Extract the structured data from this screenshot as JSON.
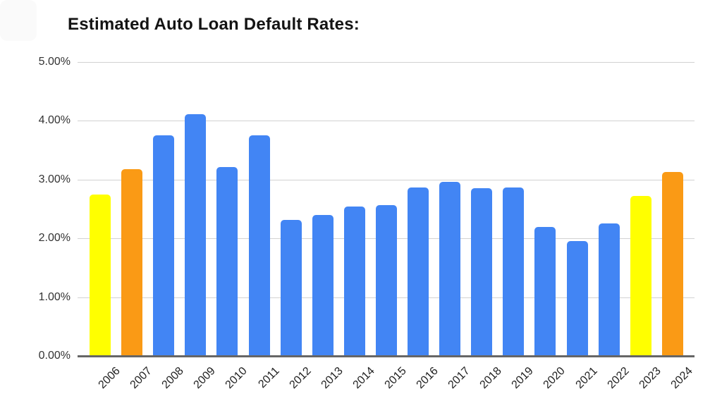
{
  "chart_data": {
    "type": "bar",
    "title": "Estimated Auto Loan Default Rates:",
    "categories": [
      "2006",
      "2007",
      "2008",
      "2009",
      "2010",
      "2011",
      "2012",
      "2013",
      "2014",
      "2015",
      "2016",
      "2017",
      "2018",
      "2019",
      "2020",
      "2021",
      "2022",
      "2023",
      "2024"
    ],
    "values": [
      2.75,
      3.18,
      3.75,
      4.11,
      3.21,
      3.75,
      2.32,
      2.4,
      2.54,
      2.57,
      2.87,
      2.96,
      2.85,
      2.87,
      2.2,
      1.95,
      2.25,
      2.72,
      3.13
    ],
    "bar_colors": [
      "#FFFF00",
      "#FA9A15",
      "#4285F4",
      "#4285F4",
      "#4285F4",
      "#4285F4",
      "#4285F4",
      "#4285F4",
      "#4285F4",
      "#4285F4",
      "#4285F4",
      "#4285F4",
      "#4285F4",
      "#4285F4",
      "#4285F4",
      "#4285F4",
      "#4285F4",
      "#FFFF00",
      "#FA9A15"
    ],
    "colors": {
      "blue": "#4285F4",
      "yellow": "#FFFF00",
      "orange": "#FA9A15",
      "gridline": "#d2d2d2",
      "axis": "#666666",
      "title_text": "#141414",
      "tick_text": "#333333"
    },
    "yticks": [
      "5.00%",
      "4.00%",
      "3.00%",
      "2.00%",
      "1.00%",
      "0.00%"
    ],
    "ytick_values": [
      5,
      4,
      3,
      2,
      1,
      0
    ],
    "ylim": [
      0,
      5
    ],
    "xlabel": "",
    "ylabel": "",
    "grid": true,
    "legend_position": "none",
    "x_tick_rotation_deg": -45
  }
}
